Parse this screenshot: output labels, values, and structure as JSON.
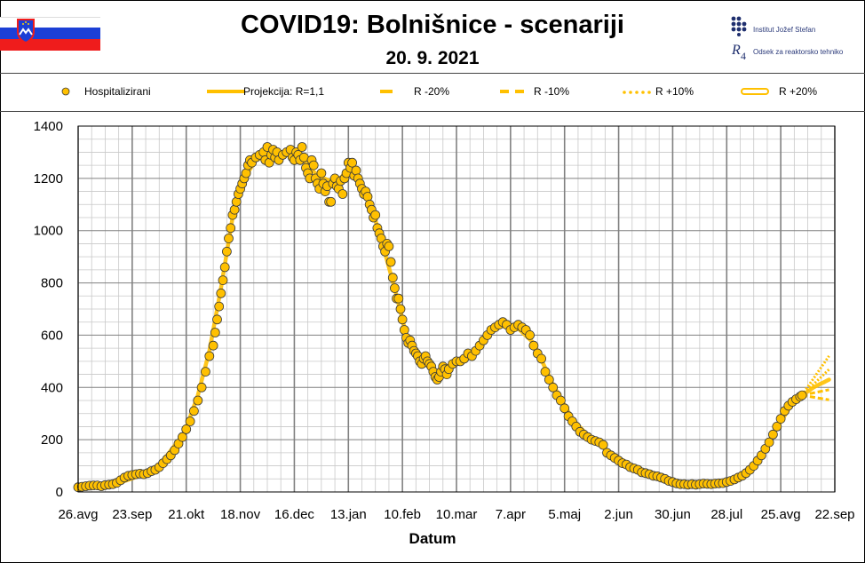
{
  "header": {
    "title": "COVID19: Bolnišnice - scenariji",
    "date": "20. 9. 2021",
    "logo_ijs": "Institut Jožef Stefan",
    "logo_r4": "Odsek za reaktorsko tehniko",
    "flag_colors": [
      "#ffffff",
      "#1c3fd6",
      "#ef1c1c"
    ]
  },
  "legend": [
    {
      "label": "Hospitalizirani",
      "style": "dot"
    },
    {
      "label": "Projekcija: R=1,1",
      "style": "solid"
    },
    {
      "label": "R -20%",
      "style": "dash-long"
    },
    {
      "label": "R -10%",
      "style": "dash-medium"
    },
    {
      "label": "R +10%",
      "style": "dotted"
    },
    {
      "label": "R +20%",
      "style": "double"
    }
  ],
  "chart_data": {
    "type": "scatter",
    "xlabel": "Datum",
    "ylabel": "",
    "ylim": [
      0,
      1400
    ],
    "yticks": [
      0,
      200,
      400,
      600,
      800,
      1000,
      1200,
      1400
    ],
    "xlim": [
      0,
      392
    ],
    "xticks": [
      "26.avg",
      "23.sep",
      "21.okt",
      "18.nov",
      "16.dec",
      "13.jan",
      "10.feb",
      "10.mar",
      "7.apr",
      "5.maj",
      "2.jun",
      "30.jun",
      "28.jul",
      "25.avg",
      "22.sep"
    ],
    "grid": true,
    "colors": {
      "points": "#ffc000",
      "point_edge": "#3a3a3a",
      "projection": "#ffc000",
      "grid_major": "#808080",
      "grid_minor": "#c8c8c8"
    },
    "series": [
      {
        "name": "Hospitalizirani",
        "kind": "points",
        "values": [
          [
            0,
            18
          ],
          [
            2,
            20
          ],
          [
            4,
            22
          ],
          [
            6,
            24
          ],
          [
            8,
            25
          ],
          [
            10,
            25
          ],
          [
            12,
            22
          ],
          [
            14,
            26
          ],
          [
            16,
            28
          ],
          [
            18,
            30
          ],
          [
            20,
            35
          ],
          [
            22,
            45
          ],
          [
            24,
            55
          ],
          [
            26,
            62
          ],
          [
            28,
            65
          ],
          [
            30,
            68
          ],
          [
            32,
            70
          ],
          [
            34,
            68
          ],
          [
            36,
            72
          ],
          [
            38,
            80
          ],
          [
            40,
            85
          ],
          [
            42,
            95
          ],
          [
            44,
            110
          ],
          [
            46,
            125
          ],
          [
            48,
            140
          ],
          [
            50,
            160
          ],
          [
            52,
            185
          ],
          [
            54,
            210
          ],
          [
            56,
            240
          ],
          [
            58,
            270
          ],
          [
            60,
            310
          ],
          [
            62,
            350
          ],
          [
            64,
            400
          ],
          [
            66,
            460
          ],
          [
            68,
            520
          ],
          [
            70,
            560
          ],
          [
            71,
            610
          ],
          [
            72,
            660
          ],
          [
            73,
            710
          ],
          [
            74,
            760
          ],
          [
            75,
            810
          ],
          [
            76,
            860
          ],
          [
            77,
            920
          ],
          [
            78,
            970
          ],
          [
            79,
            1010
          ],
          [
            80,
            1060
          ],
          [
            81,
            1080
          ],
          [
            82,
            1110
          ],
          [
            83,
            1140
          ],
          [
            84,
            1160
          ],
          [
            85,
            1180
          ],
          [
            86,
            1200
          ],
          [
            87,
            1220
          ],
          [
            88,
            1250
          ],
          [
            89,
            1270
          ],
          [
            90,
            1260
          ],
          [
            92,
            1280
          ],
          [
            94,
            1290
          ],
          [
            96,
            1300
          ],
          [
            97,
            1270
          ],
          [
            98,
            1320
          ],
          [
            99,
            1260
          ],
          [
            100,
            1290
          ],
          [
            101,
            1310
          ],
          [
            102,
            1280
          ],
          [
            103,
            1300
          ],
          [
            104,
            1270
          ],
          [
            106,
            1290
          ],
          [
            108,
            1300
          ],
          [
            110,
            1310
          ],
          [
            111,
            1280
          ],
          [
            112,
            1270
          ],
          [
            113,
            1300
          ],
          [
            114,
            1290
          ],
          [
            115,
            1270
          ],
          [
            116,
            1320
          ],
          [
            117,
            1280
          ],
          [
            118,
            1240
          ],
          [
            119,
            1220
          ],
          [
            120,
            1200
          ],
          [
            121,
            1270
          ],
          [
            122,
            1250
          ],
          [
            123,
            1200
          ],
          [
            124,
            1180
          ],
          [
            125,
            1160
          ],
          [
            126,
            1220
          ],
          [
            127,
            1180
          ],
          [
            128,
            1150
          ],
          [
            129,
            1170
          ],
          [
            130,
            1110
          ],
          [
            131,
            1110
          ],
          [
            132,
            1180
          ],
          [
            133,
            1200
          ],
          [
            134,
            1170
          ],
          [
            135,
            1160
          ],
          [
            136,
            1190
          ],
          [
            137,
            1140
          ],
          [
            138,
            1200
          ],
          [
            139,
            1220
          ],
          [
            140,
            1260
          ],
          [
            141,
            1240
          ],
          [
            142,
            1260
          ],
          [
            143,
            1210
          ],
          [
            144,
            1230
          ],
          [
            145,
            1200
          ],
          [
            146,
            1180
          ],
          [
            147,
            1160
          ],
          [
            148,
            1140
          ],
          [
            149,
            1150
          ],
          [
            150,
            1130
          ],
          [
            151,
            1100
          ],
          [
            152,
            1080
          ],
          [
            153,
            1050
          ],
          [
            154,
            1060
          ],
          [
            155,
            1010
          ],
          [
            156,
            990
          ],
          [
            157,
            970
          ],
          [
            158,
            940
          ],
          [
            159,
            920
          ],
          [
            160,
            950
          ],
          [
            161,
            940
          ],
          [
            162,
            880
          ],
          [
            163,
            820
          ],
          [
            164,
            780
          ],
          [
            165,
            740
          ],
          [
            166,
            740
          ],
          [
            167,
            700
          ],
          [
            168,
            660
          ],
          [
            169,
            620
          ],
          [
            170,
            590
          ],
          [
            171,
            570
          ],
          [
            172,
            580
          ],
          [
            173,
            560
          ],
          [
            174,
            540
          ],
          [
            175,
            530
          ],
          [
            176,
            520
          ],
          [
            177,
            500
          ],
          [
            178,
            490
          ],
          [
            179,
            510
          ],
          [
            180,
            520
          ],
          [
            181,
            500
          ],
          [
            182,
            490
          ],
          [
            183,
            480
          ],
          [
            184,
            460
          ],
          [
            185,
            440
          ],
          [
            186,
            430
          ],
          [
            187,
            440
          ],
          [
            188,
            460
          ],
          [
            189,
            480
          ],
          [
            190,
            470
          ],
          [
            191,
            450
          ],
          [
            192,
            470
          ],
          [
            194,
            490
          ],
          [
            196,
            500
          ],
          [
            198,
            500
          ],
          [
            200,
            510
          ],
          [
            202,
            530
          ],
          [
            204,
            520
          ],
          [
            206,
            540
          ],
          [
            208,
            560
          ],
          [
            210,
            580
          ],
          [
            212,
            600
          ],
          [
            214,
            620
          ],
          [
            216,
            630
          ],
          [
            218,
            640
          ],
          [
            220,
            650
          ],
          [
            222,
            640
          ],
          [
            224,
            620
          ],
          [
            226,
            630
          ],
          [
            228,
            640
          ],
          [
            230,
            630
          ],
          [
            232,
            620
          ],
          [
            234,
            600
          ],
          [
            236,
            560
          ],
          [
            238,
            530
          ],
          [
            240,
            510
          ],
          [
            242,
            460
          ],
          [
            244,
            430
          ],
          [
            246,
            400
          ],
          [
            248,
            370
          ],
          [
            250,
            350
          ],
          [
            252,
            320
          ],
          [
            254,
            290
          ],
          [
            256,
            270
          ],
          [
            258,
            250
          ],
          [
            260,
            230
          ],
          [
            262,
            220
          ],
          [
            264,
            210
          ],
          [
            266,
            200
          ],
          [
            268,
            195
          ],
          [
            270,
            190
          ],
          [
            272,
            180
          ],
          [
            274,
            150
          ],
          [
            276,
            140
          ],
          [
            278,
            130
          ],
          [
            280,
            120
          ],
          [
            282,
            110
          ],
          [
            284,
            105
          ],
          [
            286,
            95
          ],
          [
            288,
            90
          ],
          [
            290,
            85
          ],
          [
            292,
            75
          ],
          [
            294,
            72
          ],
          [
            296,
            68
          ],
          [
            298,
            62
          ],
          [
            300,
            60
          ],
          [
            302,
            55
          ],
          [
            304,
            50
          ],
          [
            306,
            42
          ],
          [
            308,
            38
          ],
          [
            310,
            33
          ],
          [
            312,
            30
          ],
          [
            314,
            30
          ],
          [
            316,
            28
          ],
          [
            318,
            30
          ],
          [
            320,
            28
          ],
          [
            322,
            30
          ],
          [
            324,
            32
          ],
          [
            326,
            31
          ],
          [
            328,
            30
          ],
          [
            330,
            32
          ],
          [
            332,
            33
          ],
          [
            334,
            34
          ],
          [
            336,
            38
          ],
          [
            338,
            42
          ],
          [
            340,
            48
          ],
          [
            342,
            55
          ],
          [
            344,
            62
          ],
          [
            346,
            72
          ],
          [
            348,
            85
          ],
          [
            350,
            100
          ],
          [
            352,
            120
          ],
          [
            354,
            140
          ],
          [
            356,
            165
          ],
          [
            358,
            190
          ],
          [
            360,
            220
          ],
          [
            362,
            250
          ],
          [
            364,
            280
          ],
          [
            366,
            310
          ],
          [
            368,
            330
          ],
          [
            370,
            345
          ],
          [
            372,
            355
          ],
          [
            374,
            365
          ],
          [
            375,
            370
          ]
        ]
      },
      {
        "name": "Projekcija: R=1,1",
        "kind": "line",
        "values": [
          [
            0,
            20
          ],
          [
            20,
            32
          ],
          [
            40,
            82
          ],
          [
            55,
            225
          ],
          [
            62,
            370
          ],
          [
            68,
            540
          ],
          [
            74,
            780
          ],
          [
            80,
            1050
          ],
          [
            86,
            1200
          ],
          [
            92,
            1270
          ],
          [
            104,
            1300
          ],
          [
            114,
            1290
          ],
          [
            124,
            1210
          ],
          [
            134,
            1180
          ],
          [
            140,
            1240
          ],
          [
            146,
            1190
          ],
          [
            152,
            1090
          ],
          [
            158,
            940
          ],
          [
            164,
            780
          ],
          [
            170,
            600
          ],
          [
            178,
            500
          ],
          [
            186,
            460
          ],
          [
            196,
            500
          ],
          [
            206,
            540
          ],
          [
            216,
            630
          ],
          [
            226,
            640
          ],
          [
            236,
            570
          ],
          [
            246,
            410
          ],
          [
            256,
            280
          ],
          [
            266,
            200
          ],
          [
            276,
            150
          ],
          [
            290,
            85
          ],
          [
            304,
            50
          ],
          [
            316,
            30
          ],
          [
            330,
            30
          ],
          [
            340,
            48
          ],
          [
            350,
            100
          ],
          [
            360,
            220
          ],
          [
            370,
            340
          ],
          [
            375,
            370
          ],
          [
            378,
            385
          ],
          [
            381,
            400
          ],
          [
            384,
            412
          ],
          [
            387,
            422
          ],
          [
            389,
            430
          ]
        ]
      }
    ]
  }
}
